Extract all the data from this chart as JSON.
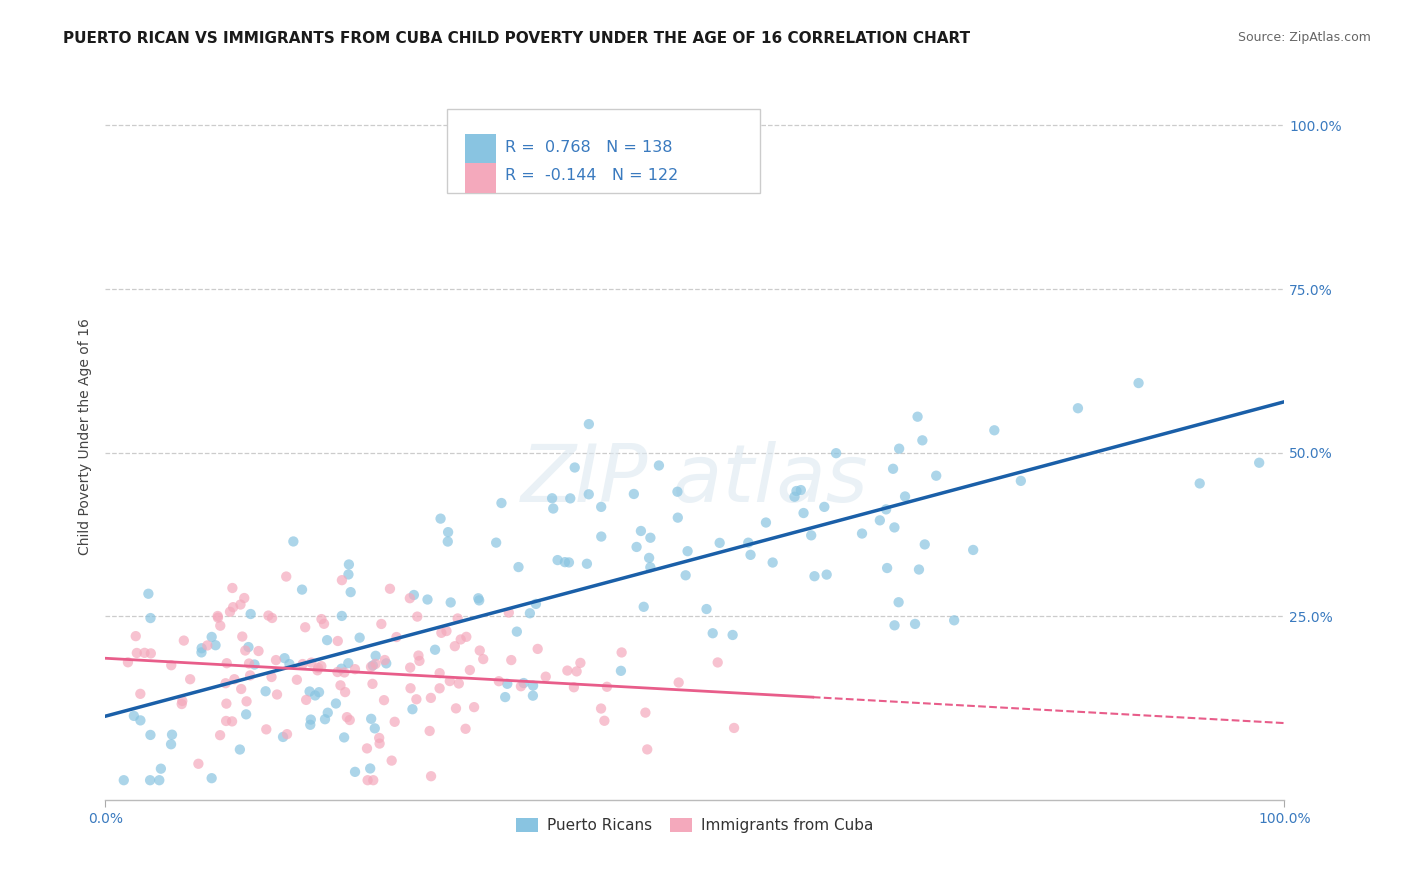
{
  "title": "PUERTO RICAN VS IMMIGRANTS FROM CUBA CHILD POVERTY UNDER THE AGE OF 16 CORRELATION CHART",
  "source": "Source: ZipAtlas.com",
  "ylabel": "Child Poverty Under the Age of 16",
  "blue_R": 0.768,
  "blue_N": 138,
  "pink_R": -0.144,
  "pink_N": 122,
  "blue_color": "#89c4e1",
  "pink_color": "#f4a9bc",
  "blue_line_color": "#1a5fa8",
  "pink_line_color": "#e85d8a",
  "legend_label_blue": "Puerto Ricans",
  "legend_label_pink": "Immigrants from Cuba",
  "title_fontsize": 11,
  "background_color": "#ffffff",
  "plot_bg_color": "#ffffff",
  "grid_color": "#cccccc",
  "ytick_values": [
    0.0,
    0.25,
    0.5,
    0.75,
    1.0
  ],
  "ytick_labels": [
    "",
    "25.0%",
    "50.0%",
    "75.0%",
    "100.0%"
  ],
  "right_ytick_labels": [
    "",
    "25.0%",
    "50.0%",
    "75.0%",
    "100.0%"
  ],
  "tick_color": "#3a7abf",
  "watermark_color": "#dce8f0",
  "watermark_alpha": 0.6
}
